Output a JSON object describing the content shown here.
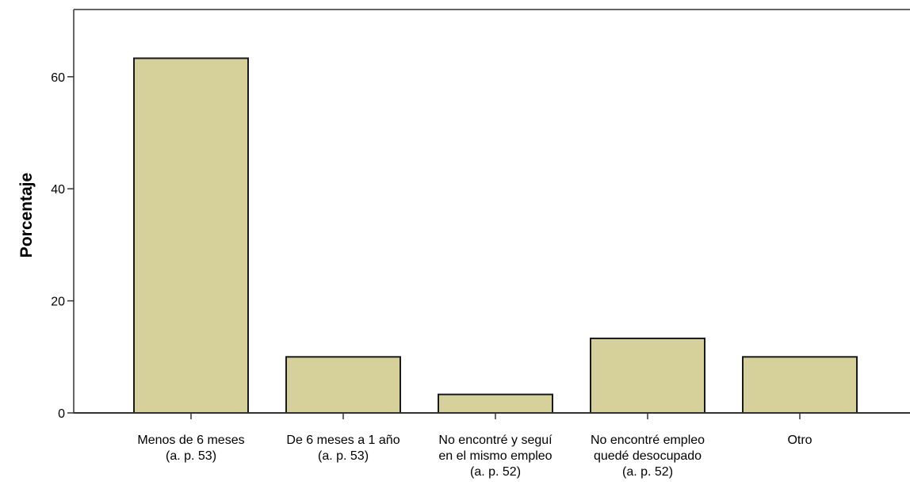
{
  "chart_data": {
    "type": "bar",
    "title": "",
    "xlabel": "",
    "ylabel": "Porcentaje",
    "ylim": [
      0,
      72
    ],
    "yticks": [
      0,
      20,
      40,
      60
    ],
    "grid": false,
    "legend": "none",
    "bar_color": "#d6d09a",
    "bar_edge_color": "#1a1a1a",
    "categories": [
      [
        "Menos de 6 meses",
        "(a. p. 53)"
      ],
      [
        "De 6 meses a 1 año",
        "(a. p. 53)"
      ],
      [
        "No encontré y seguí",
        "en el mismo empleo",
        "(a. p. 52)"
      ],
      [
        "No encontré empleo",
        "quedé desocupado",
        "(a. p. 52)"
      ],
      [
        "Otro"
      ]
    ],
    "values": [
      63.3,
      10.0,
      3.3,
      13.3,
      10.0
    ]
  }
}
